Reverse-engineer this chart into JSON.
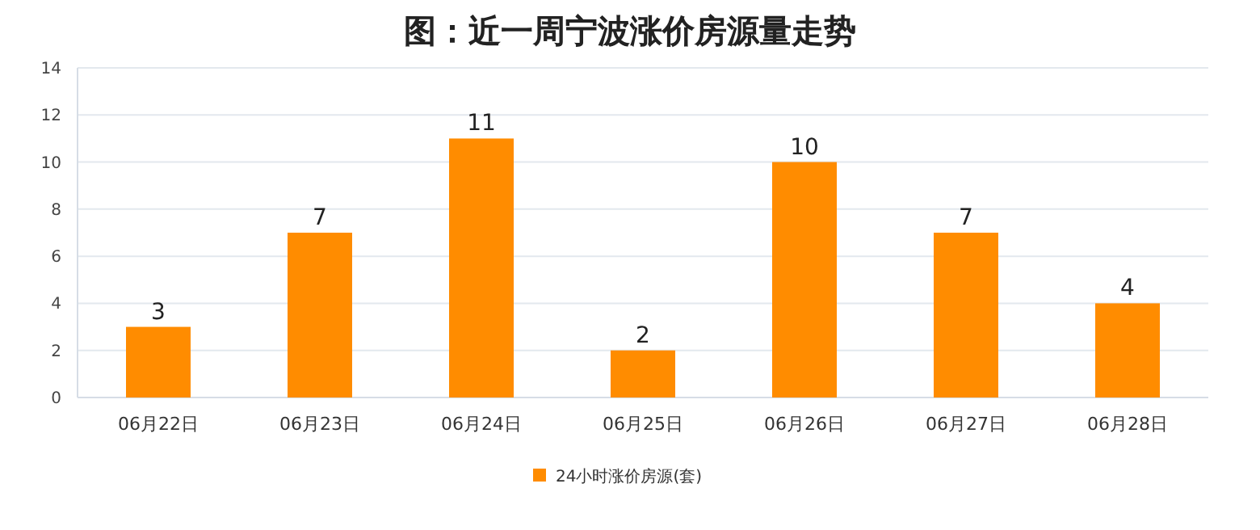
{
  "chart_data": {
    "type": "bar",
    "title": "图：近一周宁波涨价房源量走势",
    "categories": [
      "06月22日",
      "06月23日",
      "06月24日",
      "06月25日",
      "06月26日",
      "06月27日",
      "06月28日"
    ],
    "series": [
      {
        "name": "24小时涨价房源(套)",
        "color": "#ff8c00",
        "values": [
          3,
          7,
          11,
          2,
          10,
          7,
          4
        ]
      }
    ],
    "ylim": [
      0,
      14
    ],
    "yticks": [
      0,
      2,
      4,
      6,
      8,
      10,
      12,
      14
    ],
    "grid": "y",
    "legend": "bottom",
    "data_labels": true
  }
}
